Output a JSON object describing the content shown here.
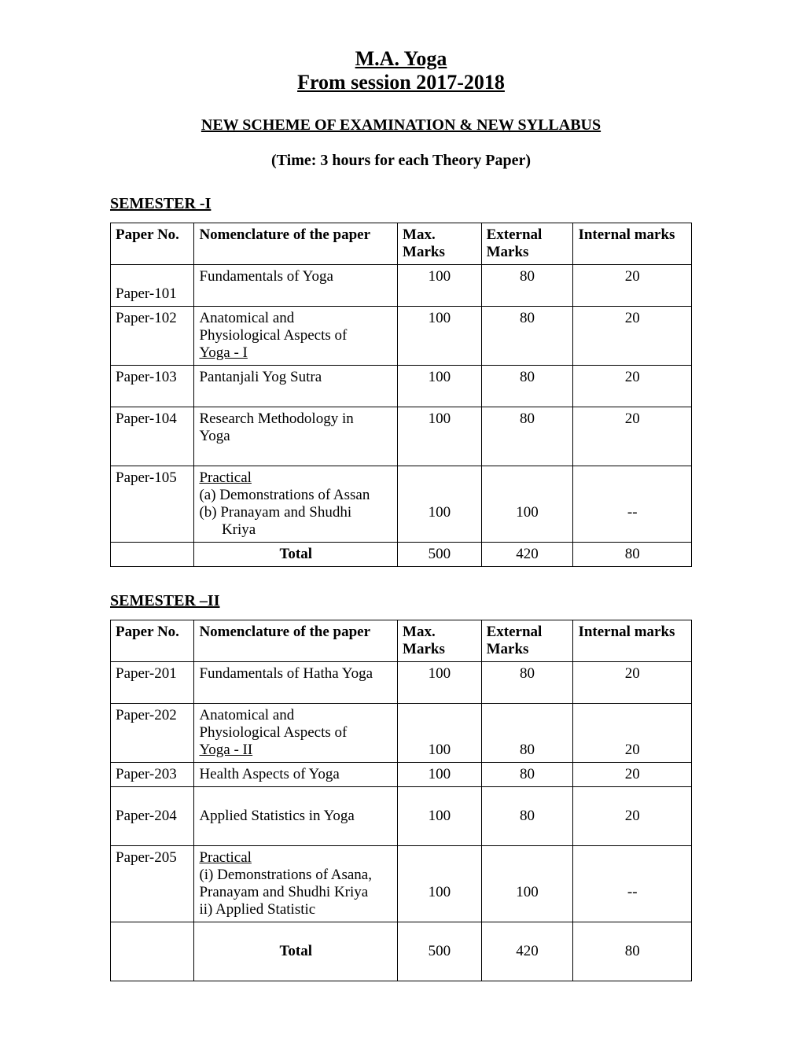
{
  "header": {
    "title1": "M.A. Yoga",
    "title2": "From session 2017-2018",
    "subtitle": "NEW SCHEME OF EXAMINATION & NEW SYLLABUS",
    "time_note": "(Time: 3 hours for each Theory Paper)"
  },
  "sem1": {
    "heading": "SEMESTER -I",
    "cols": {
      "paper": "Paper No.",
      "nom": "Nomenclature of the paper",
      "max1": "Max.",
      "max2": "Marks",
      "ext1": "External",
      "ext2": "Marks",
      "int": "Internal marks"
    },
    "rows": {
      "r1": {
        "paper": "Paper-101",
        "nom": "Fundamentals of Yoga",
        "max": "100",
        "ext": "80",
        "int": "20"
      },
      "r2": {
        "paper": "Paper-102",
        "nom": "Anatomical and Physiological Aspects of Yoga - I",
        "max": "100",
        "ext": "80",
        "int": "20"
      },
      "r3": {
        "paper": "Paper-103",
        "nom": "Pantanjali Yog Sutra",
        "max": "100",
        "ext": "80",
        "int": "20"
      },
      "r4": {
        "paper": "Paper-104",
        "nom": "Research Methodology in Yoga",
        "max": "100",
        "ext": "80",
        "int": "20"
      },
      "r5": {
        "paper": "Paper-105",
        "nom_u": "Practical",
        "nom_a": "(a) Demonstrations of Assan",
        "nom_b": "(b) Pranayam and Shudhi",
        "nom_c": "      Kriya",
        "max": "100",
        "ext": "100",
        "int": "--"
      },
      "total": {
        "label": "Total",
        "max": "500",
        "ext": "420",
        "int": "80"
      }
    }
  },
  "sem2": {
    "heading": "SEMESTER –II",
    "cols": {
      "paper": "Paper No.",
      "nom": "Nomenclature of the paper",
      "max1": "Max.",
      "max2": "Marks",
      "ext1": "External",
      "ext2": "Marks",
      "int": "Internal marks"
    },
    "rows": {
      "r1": {
        "paper": "Paper-201",
        "nom": "Fundamentals of Hatha Yoga",
        "max": "100",
        "ext": "80",
        "int": "20"
      },
      "r2": {
        "paper": "Paper-202",
        "nom_a": "Anatomical and",
        "nom_b": "Physiological Aspects of",
        "nom_c": "Yoga - II",
        "max": "100",
        "ext": "80",
        "int": "20"
      },
      "r3": {
        "paper": "Paper-203",
        "nom": "Health Aspects of Yoga",
        "max": "100",
        "ext": "80",
        "int": "20"
      },
      "r4": {
        "paper": "Paper-204",
        "nom": "Applied Statistics in Yoga",
        "max": "100",
        "ext": "80",
        "int": "20"
      },
      "r5": {
        "paper": "Paper-205",
        "nom_u": "Practical",
        "nom_a": "(i) Demonstrations of Asana,",
        "nom_b": "Pranayam and Shudhi Kriya",
        "nom_c": "ii) Applied Statistic",
        "max": "100",
        "ext": "100",
        "int": "--"
      },
      "total": {
        "label": "Total",
        "max": "500",
        "ext": "420",
        "int": "80"
      }
    }
  }
}
